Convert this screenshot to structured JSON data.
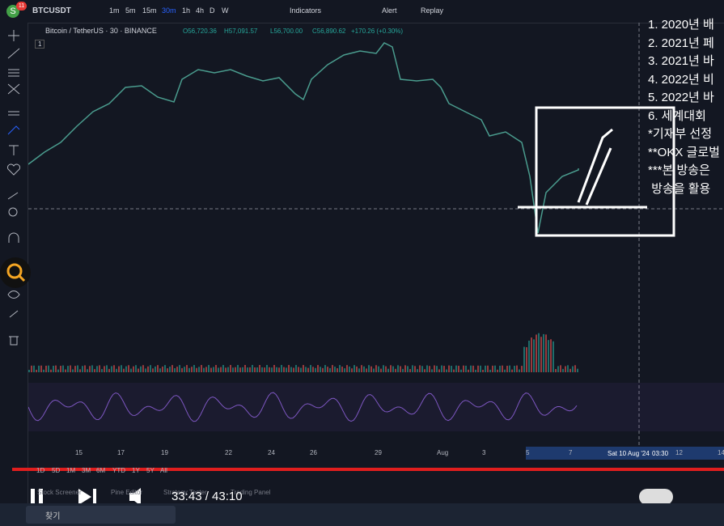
{
  "toolbar": {
    "avatar": "S",
    "badge": "11",
    "symbol": "BTCUSDT",
    "intervals": [
      "1m",
      "5m",
      "15m",
      "30m",
      "1h",
      "4h",
      "D",
      "W"
    ],
    "indicators": "Indicators",
    "alert": "Alert",
    "replay": "Replay"
  },
  "legend": {
    "title": "Bitcoin / TetherUS · 30 · BINANCE",
    "open": "O56,720.36",
    "high": "H57,091.57",
    "low": "L56,700.00",
    "close": "C56,890.62",
    "change": "+170.26 (+0.30%)",
    "count": "1"
  },
  "x_axis": {
    "labels": [
      "15",
      "17",
      "19",
      "22",
      "24",
      "26",
      "29",
      "Aug",
      "3",
      "5",
      "7",
      "12",
      "14"
    ],
    "cursor_date": "Sat 10 Aug '24",
    "cursor_time": "03:30"
  },
  "overlay": {
    "lines": [
      "1. 2020년 배",
      "2. 2021년 페",
      "3. 2021년 바",
      "4. 2022년 비",
      "5. 2022년 바",
      "6. 세계대회 ",
      "*기재부 선정",
      "**OKX 글로벌",
      "***본 방송은",
      " 방송을 활용"
    ]
  },
  "bottom": {
    "ranges": [
      "1D",
      "5D",
      "1M",
      "3M",
      "6M",
      "YTD",
      "1Y",
      "5Y",
      "All"
    ],
    "tabs": [
      "Stock Screener",
      "Pine Editor",
      "Strategy Tester",
      "Trading Panel"
    ]
  },
  "player": {
    "time": "33:43 / 43:10"
  },
  "taskbar": {
    "search": "찾기"
  }
}
